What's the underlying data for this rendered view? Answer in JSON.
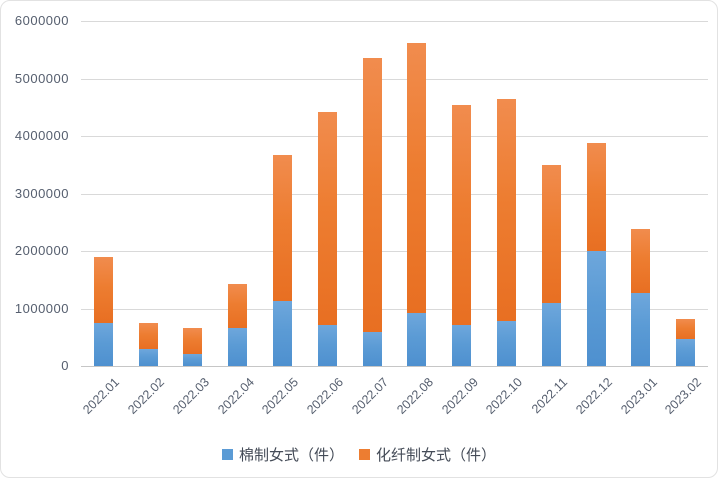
{
  "chart_data": {
    "type": "bar",
    "stacked": true,
    "title": "",
    "xlabel": "",
    "ylabel": "",
    "categories": [
      "2022.01",
      "2022.02",
      "2022.03",
      "2022.04",
      "2022.05",
      "2022.06",
      "2022.07",
      "2022.08",
      "2022.09",
      "2022.10",
      "2022.11",
      "2022.12",
      "2023.01",
      "2023.02"
    ],
    "series": [
      {
        "name": "棉制女式（件）",
        "color": "#5B9BD5",
        "values": [
          740000,
          300000,
          210000,
          660000,
          1130000,
          710000,
          590000,
          920000,
          710000,
          780000,
          1100000,
          2000000,
          1270000,
          470000
        ]
      },
      {
        "name": "化纤制女式（件）",
        "color": "#ED7D31",
        "values": [
          1150000,
          450000,
          450000,
          770000,
          2540000,
          3710000,
          4770000,
          4700000,
          3830000,
          3860000,
          2400000,
          1870000,
          1110000,
          350000
        ]
      }
    ],
    "ylim": [
      0,
      6000000
    ],
    "ytick_step": 1000000,
    "yticks": [
      "0",
      "1000000",
      "2000000",
      "3000000",
      "4000000",
      "5000000",
      "6000000"
    ],
    "grid": true,
    "legend_position": "bottom"
  },
  "colors": {
    "gridline": "#D9D9D9",
    "axis_line": "#C6C6C6",
    "axis_text": "#555E6E",
    "frame_border": "#E2E2E2",
    "background": "#FFFFFF"
  }
}
